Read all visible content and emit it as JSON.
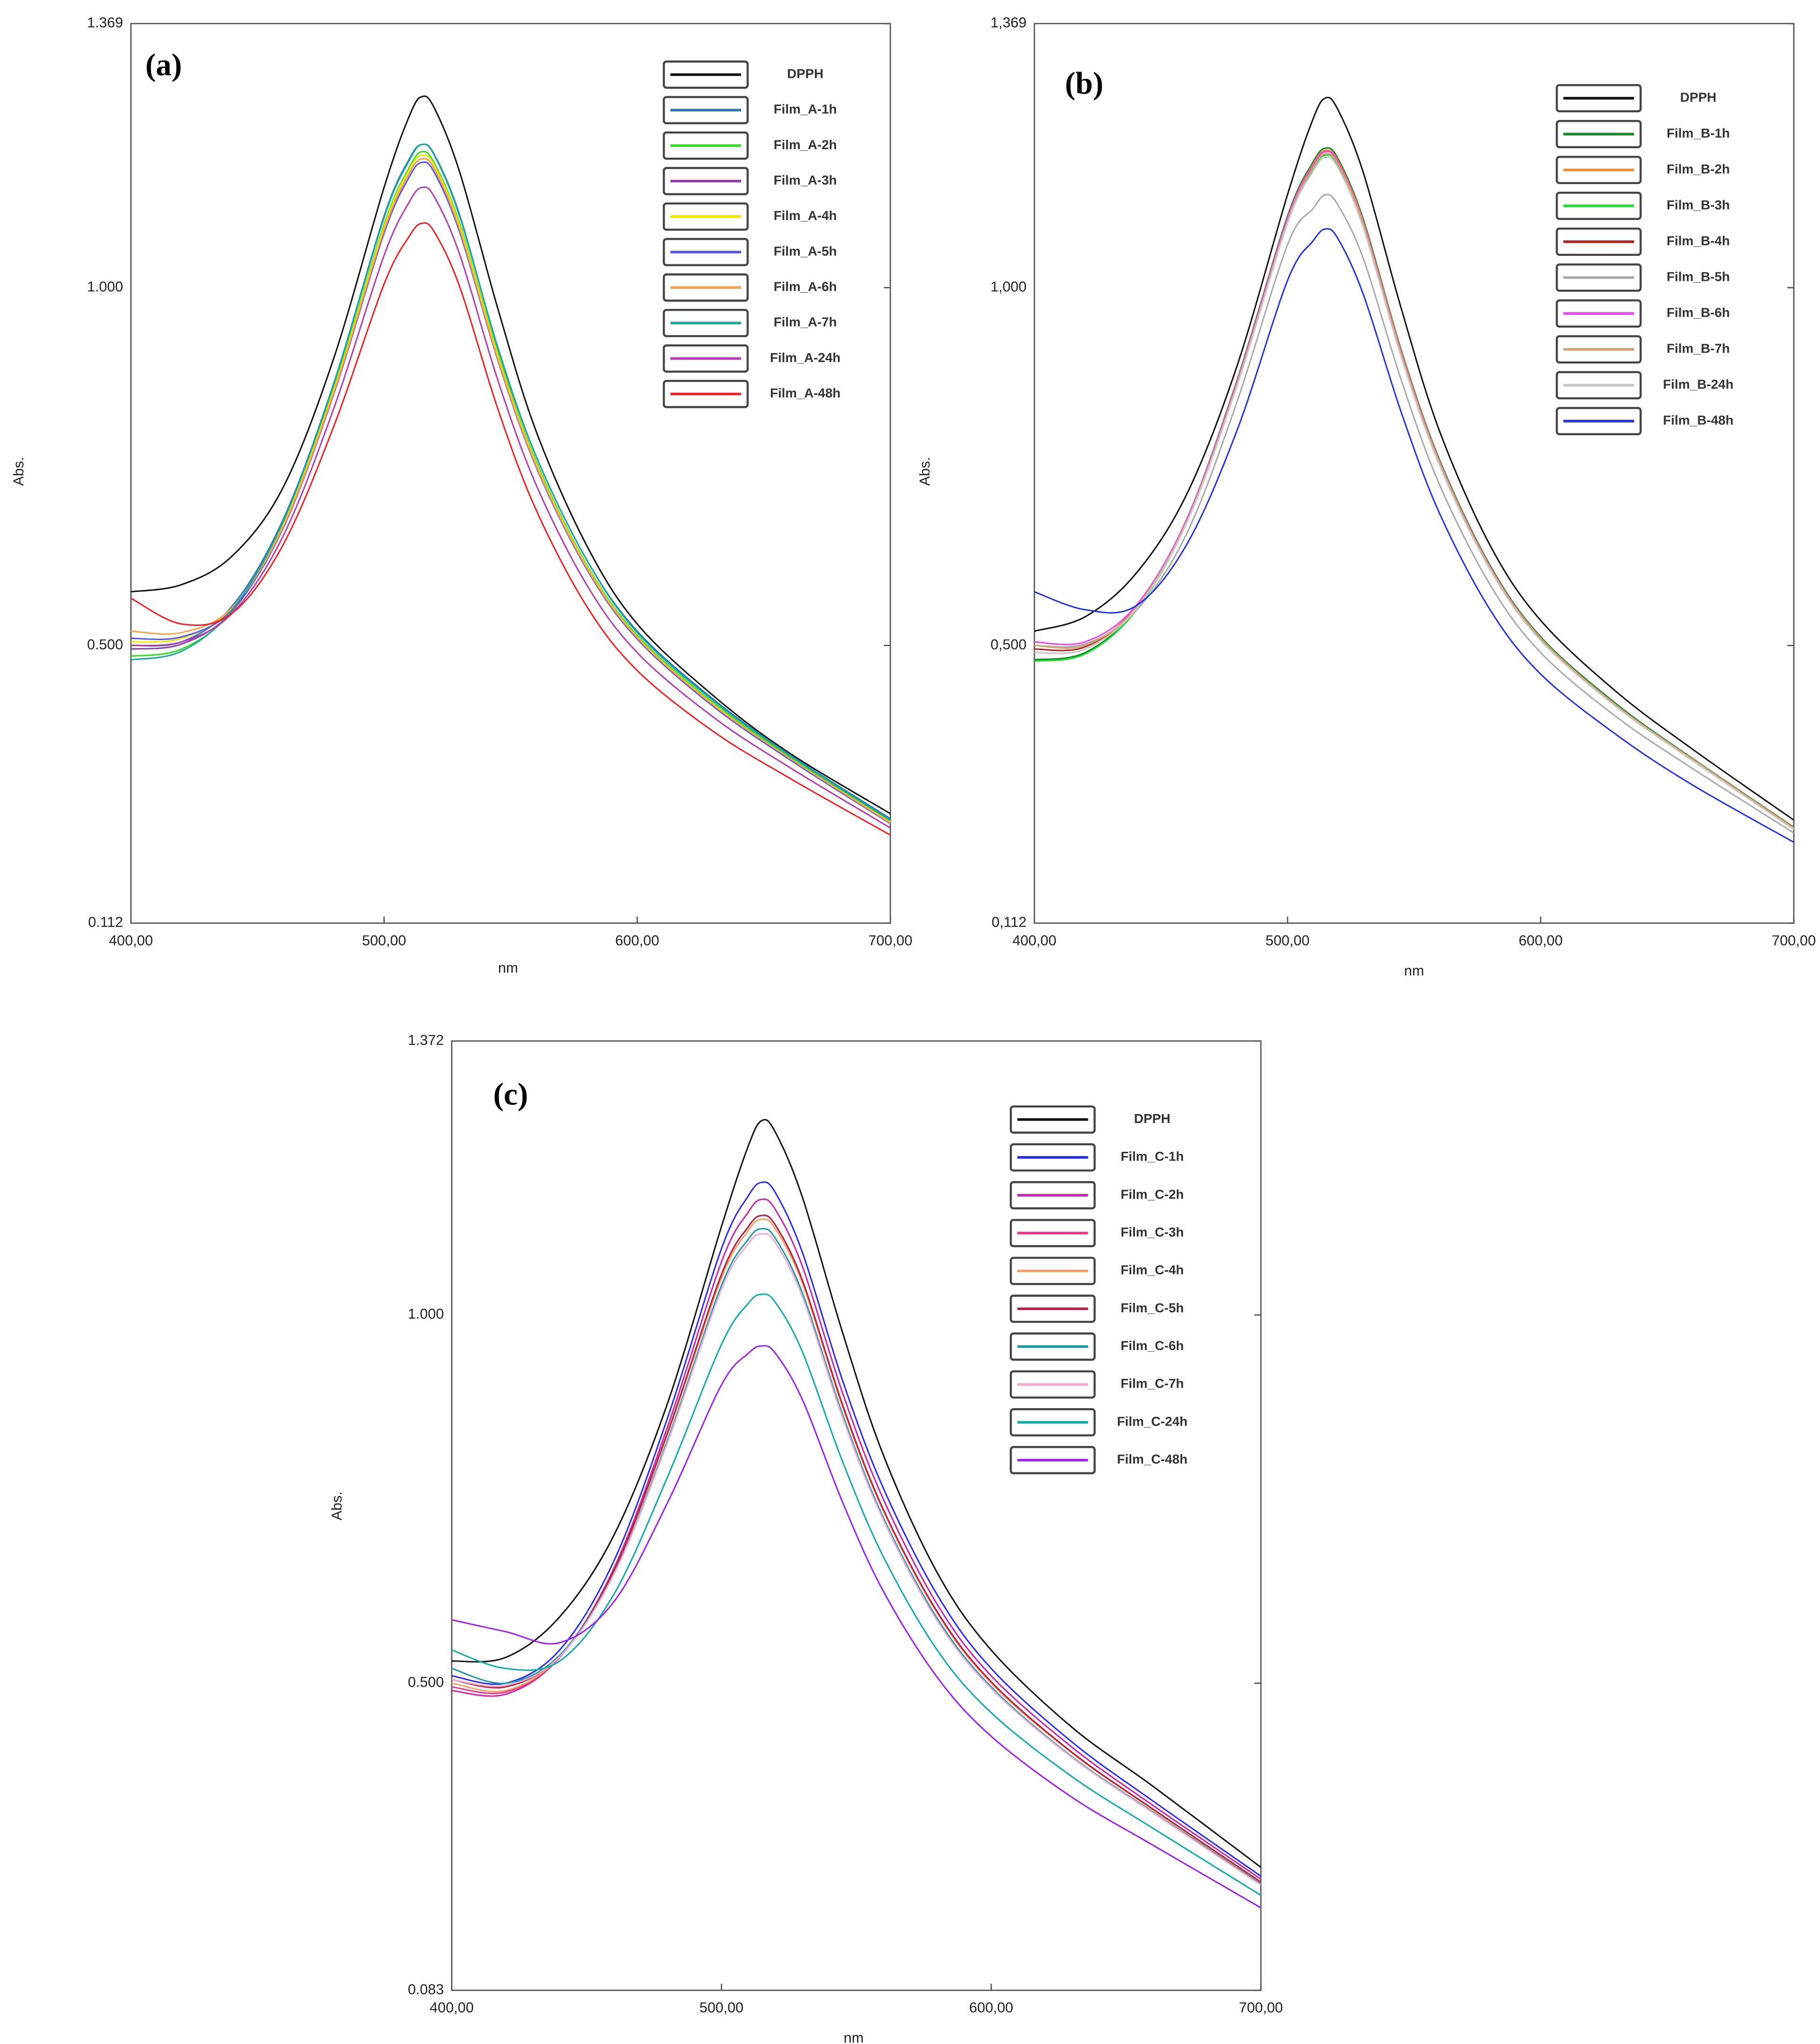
{
  "chart_data": [
    {
      "type": "line",
      "annotation": "(a)",
      "xlabel": "nm",
      "ylabel": "Abs.",
      "xlim": [
        400,
        700
      ],
      "ylim": [
        0.112,
        1.369
      ],
      "xticks": [
        {
          "value": 400,
          "label": "400,00"
        },
        {
          "value": 500,
          "label": "500,00"
        },
        {
          "value": 600,
          "label": "600,00"
        },
        {
          "value": 700,
          "label": "700,00"
        }
      ],
      "yticks": [
        {
          "value": 0.112,
          "label": "0.112"
        },
        {
          "value": 0.5,
          "label": "0.500"
        },
        {
          "value": 1,
          "label": "1.000"
        },
        {
          "value": 1.369,
          "label": "1.369"
        }
      ],
      "x": [
        400,
        420,
        440,
        460,
        480,
        500,
        510,
        515,
        520,
        530,
        545,
        560,
        580,
        600,
        630,
        660,
        700
      ],
      "series": [
        {
          "name": "DPPH",
          "color": "#111111",
          "values": [
            0.575,
            0.585,
            0.625,
            0.72,
            0.9,
            1.14,
            1.24,
            1.267,
            1.25,
            1.16,
            0.97,
            0.8,
            0.64,
            0.53,
            0.43,
            0.35,
            0.265
          ]
        },
        {
          "name": "Film_A-1h",
          "color": "#2f74b5",
          "values": [
            0.5,
            0.505,
            0.555,
            0.675,
            0.865,
            1.1,
            1.18,
            1.2,
            1.185,
            1.1,
            0.915,
            0.765,
            0.62,
            0.52,
            0.425,
            0.348,
            0.258
          ]
        },
        {
          "name": "Film_A-2h",
          "color": "#33dd22",
          "values": [
            0.485,
            0.495,
            0.548,
            0.668,
            0.858,
            1.088,
            1.168,
            1.19,
            1.173,
            1.088,
            0.908,
            0.758,
            0.613,
            0.514,
            0.42,
            0.345,
            0.255
          ]
        },
        {
          "name": "Film_A-3h",
          "color": "#8a3fa8",
          "values": [
            0.495,
            0.502,
            0.548,
            0.665,
            0.853,
            1.08,
            1.16,
            1.18,
            1.165,
            1.08,
            0.902,
            0.752,
            0.608,
            0.51,
            0.416,
            0.342,
            0.252
          ]
        },
        {
          "name": "Film_A-4h",
          "color": "#f2e600",
          "values": [
            0.505,
            0.51,
            0.552,
            0.668,
            0.856,
            1.085,
            1.165,
            1.185,
            1.17,
            1.085,
            0.905,
            0.755,
            0.611,
            0.512,
            0.418,
            0.343,
            0.253
          ]
        },
        {
          "name": "Film_A-5h",
          "color": "#5555ee",
          "values": [
            0.51,
            0.512,
            0.55,
            0.663,
            0.85,
            1.076,
            1.155,
            1.175,
            1.16,
            1.076,
            0.898,
            0.75,
            0.607,
            0.509,
            0.415,
            0.341,
            0.251
          ]
        },
        {
          "name": "Film_A-6h",
          "color": "#f5a04a",
          "values": [
            0.52,
            0.518,
            0.553,
            0.665,
            0.852,
            1.08,
            1.16,
            1.18,
            1.165,
            1.08,
            0.9,
            0.752,
            0.609,
            0.511,
            0.417,
            0.343,
            0.252
          ]
        },
        {
          "name": "Film_A-7h",
          "color": "#1aa89a",
          "values": [
            0.48,
            0.492,
            0.55,
            0.672,
            0.864,
            1.098,
            1.178,
            1.2,
            1.184,
            1.098,
            0.916,
            0.765,
            0.62,
            0.518,
            0.423,
            0.347,
            0.256
          ]
        },
        {
          "name": "Film_A-24h",
          "color": "#b43cb4",
          "values": [
            0.5,
            0.505,
            0.545,
            0.652,
            0.83,
            1.045,
            1.12,
            1.14,
            1.126,
            1.045,
            0.87,
            0.725,
            0.585,
            0.49,
            0.4,
            0.33,
            0.245
          ]
        },
        {
          "name": "Film_A-48h",
          "color": "#ee2222",
          "values": [
            0.566,
            0.53,
            0.545,
            0.64,
            0.805,
            1.005,
            1.072,
            1.09,
            1.077,
            1.0,
            0.83,
            0.69,
            0.555,
            0.465,
            0.38,
            0.315,
            0.235
          ]
        }
      ]
    },
    {
      "type": "line",
      "annotation": "(b)",
      "xlabel": "nm",
      "ylabel": "Abs.",
      "xlim": [
        400,
        700
      ],
      "ylim": [
        0.112,
        1.369
      ],
      "xticks": [
        {
          "value": 400,
          "label": "400,00"
        },
        {
          "value": 500,
          "label": "500,00"
        },
        {
          "value": 600,
          "label": "600,00"
        },
        {
          "value": 700,
          "label": "700,00"
        }
      ],
      "yticks": [
        {
          "value": 0.112,
          "label": "0,112"
        },
        {
          "value": 0.5,
          "label": "0,500"
        },
        {
          "value": 1,
          "label": "1,000"
        },
        {
          "value": 1.369,
          "label": "1,369"
        }
      ],
      "x": [
        400,
        420,
        440,
        460,
        480,
        500,
        510,
        515,
        520,
        530,
        545,
        560,
        580,
        600,
        630,
        660,
        700
      ],
      "series": [
        {
          "name": "DPPH",
          "color": "#111111",
          "values": [
            0.52,
            0.54,
            0.6,
            0.71,
            0.89,
            1.13,
            1.235,
            1.265,
            1.248,
            1.16,
            0.97,
            0.8,
            0.64,
            0.535,
            0.435,
            0.355,
            0.256
          ]
        },
        {
          "name": "Film_B-1h",
          "color": "#108a2a",
          "values": [
            0.48,
            0.49,
            0.55,
            0.675,
            0.87,
            1.1,
            1.175,
            1.195,
            1.18,
            1.095,
            0.912,
            0.76,
            0.612,
            0.512,
            0.418,
            0.342,
            0.246
          ]
        },
        {
          "name": "Film_B-2h",
          "color": "#f28a30",
          "values": [
            0.49,
            0.495,
            0.552,
            0.674,
            0.868,
            1.097,
            1.172,
            1.192,
            1.177,
            1.092,
            0.91,
            0.758,
            0.61,
            0.51,
            0.416,
            0.341,
            0.245
          ]
        },
        {
          "name": "Film_B-3h",
          "color": "#22dd33",
          "values": [
            0.478,
            0.488,
            0.548,
            0.67,
            0.864,
            1.09,
            1.165,
            1.185,
            1.17,
            1.086,
            0.905,
            0.755,
            0.608,
            0.509,
            0.415,
            0.34,
            0.244
          ]
        },
        {
          "name": "Film_B-4h",
          "color": "#b02222",
          "values": [
            0.495,
            0.498,
            0.553,
            0.673,
            0.866,
            1.095,
            1.17,
            1.19,
            1.175,
            1.09,
            0.908,
            0.757,
            0.61,
            0.51,
            0.416,
            0.341,
            0.245
          ]
        },
        {
          "name": "Film_B-5h",
          "color": "#a8a8a8",
          "values": [
            0.5,
            0.502,
            0.548,
            0.655,
            0.84,
            1.06,
            1.11,
            1.13,
            1.115,
            1.04,
            0.87,
            0.725,
            0.585,
            0.49,
            0.4,
            0.328,
            0.238
          ]
        },
        {
          "name": "Film_B-6h",
          "color": "#ee44ee",
          "values": [
            0.505,
            0.505,
            0.555,
            0.675,
            0.868,
            1.097,
            1.17,
            1.19,
            1.175,
            1.09,
            0.908,
            0.757,
            0.61,
            0.51,
            0.416,
            0.341,
            0.245
          ]
        },
        {
          "name": "Film_B-7h",
          "color": "#d9a070",
          "values": [
            0.5,
            0.5,
            0.552,
            0.672,
            0.865,
            1.093,
            1.167,
            1.187,
            1.172,
            1.088,
            0.906,
            0.756,
            0.609,
            0.51,
            0.416,
            0.341,
            0.245
          ]
        },
        {
          "name": "Film_B-24h",
          "color": "#c8c8c8",
          "values": [
            0.49,
            0.495,
            0.55,
            0.67,
            0.862,
            1.09,
            1.162,
            1.182,
            1.167,
            1.083,
            0.902,
            0.752,
            0.606,
            0.507,
            0.414,
            0.339,
            0.243
          ]
        },
        {
          "name": "Film_B-48h",
          "color": "#2233dd",
          "values": [
            0.575,
            0.55,
            0.555,
            0.64,
            0.8,
            1.01,
            1.065,
            1.082,
            1.068,
            0.99,
            0.825,
            0.685,
            0.55,
            0.46,
            0.375,
            0.305,
            0.225
          ]
        }
      ]
    },
    {
      "type": "line",
      "annotation": "(c)",
      "xlabel": "nm",
      "ylabel": "Abs.",
      "xlim": [
        400,
        700
      ],
      "ylim": [
        0.083,
        1.372
      ],
      "xticks": [
        {
          "value": 400,
          "label": "400,00"
        },
        {
          "value": 500,
          "label": "500,00"
        },
        {
          "value": 600,
          "label": "600,00"
        },
        {
          "value": 700,
          "label": "700,00"
        }
      ],
      "yticks": [
        {
          "value": 0.083,
          "label": "0.083"
        },
        {
          "value": 0.5,
          "label": "0.500"
        },
        {
          "value": 1,
          "label": "1.000"
        },
        {
          "value": 1.372,
          "label": "1.372"
        }
      ],
      "x": [
        400,
        420,
        440,
        460,
        480,
        500,
        510,
        515,
        520,
        530,
        545,
        560,
        580,
        600,
        630,
        660,
        700
      ],
      "series": [
        {
          "name": "DPPH",
          "color": "#111111",
          "values": [
            0.53,
            0.535,
            0.59,
            0.7,
            0.88,
            1.12,
            1.23,
            1.264,
            1.248,
            1.16,
            0.975,
            0.81,
            0.65,
            0.545,
            0.44,
            0.36,
            0.25
          ]
        },
        {
          "name": "Film_C-1h",
          "color": "#2a2aee",
          "values": [
            0.51,
            0.5,
            0.545,
            0.665,
            0.86,
            1.09,
            1.162,
            1.18,
            1.166,
            1.085,
            0.91,
            0.765,
            0.62,
            0.52,
            0.42,
            0.34,
            0.238
          ]
        },
        {
          "name": "Film_C-2h",
          "color": "#cc22aa",
          "values": [
            0.49,
            0.485,
            0.535,
            0.655,
            0.848,
            1.072,
            1.14,
            1.157,
            1.143,
            1.066,
            0.893,
            0.75,
            0.607,
            0.51,
            0.413,
            0.334,
            0.234
          ]
        },
        {
          "name": "Film_C-3h",
          "color": "#ee3388",
          "values": [
            0.495,
            0.488,
            0.535,
            0.652,
            0.84,
            1.055,
            1.12,
            1.135,
            1.122,
            1.047,
            0.877,
            0.736,
            0.597,
            0.502,
            0.406,
            0.329,
            0.23
          ]
        },
        {
          "name": "Film_C-4h",
          "color": "#f2a060",
          "values": [
            0.5,
            0.49,
            0.536,
            0.652,
            0.838,
            1.05,
            1.115,
            1.13,
            1.117,
            1.043,
            0.874,
            0.734,
            0.595,
            0.5,
            0.405,
            0.328,
            0.229
          ]
        },
        {
          "name": "Film_C-5h",
          "color": "#b02244",
          "values": [
            0.505,
            0.495,
            0.537,
            0.652,
            0.84,
            1.055,
            1.12,
            1.135,
            1.122,
            1.047,
            0.877,
            0.736,
            0.597,
            0.502,
            0.406,
            0.329,
            0.23
          ]
        },
        {
          "name": "Film_C-6h",
          "color": "#1a9aa8",
          "values": [
            0.52,
            0.5,
            0.538,
            0.648,
            0.83,
            1.04,
            1.103,
            1.117,
            1.104,
            1.03,
            0.864,
            0.725,
            0.588,
            0.495,
            0.4,
            0.325,
            0.227
          ]
        },
        {
          "name": "Film_C-7h",
          "color": "#f0a8cc",
          "values": [
            0.505,
            0.497,
            0.536,
            0.647,
            0.827,
            1.035,
            1.097,
            1.11,
            1.098,
            1.025,
            0.86,
            0.722,
            0.585,
            0.493,
            0.399,
            0.324,
            0.226
          ]
        },
        {
          "name": "Film_C-24h",
          "color": "#10aaaa",
          "values": [
            0.545,
            0.52,
            0.53,
            0.62,
            0.78,
            0.96,
            1.016,
            1.028,
            1.017,
            0.95,
            0.8,
            0.672,
            0.545,
            0.46,
            0.373,
            0.303,
            0.212
          ]
        },
        {
          "name": "Film_C-48h",
          "color": "#a020ee",
          "values": [
            0.586,
            0.57,
            0.555,
            0.61,
            0.745,
            0.905,
            0.948,
            0.958,
            0.948,
            0.885,
            0.745,
            0.625,
            0.508,
            0.428,
            0.345,
            0.28,
            0.195
          ]
        }
      ]
    }
  ]
}
